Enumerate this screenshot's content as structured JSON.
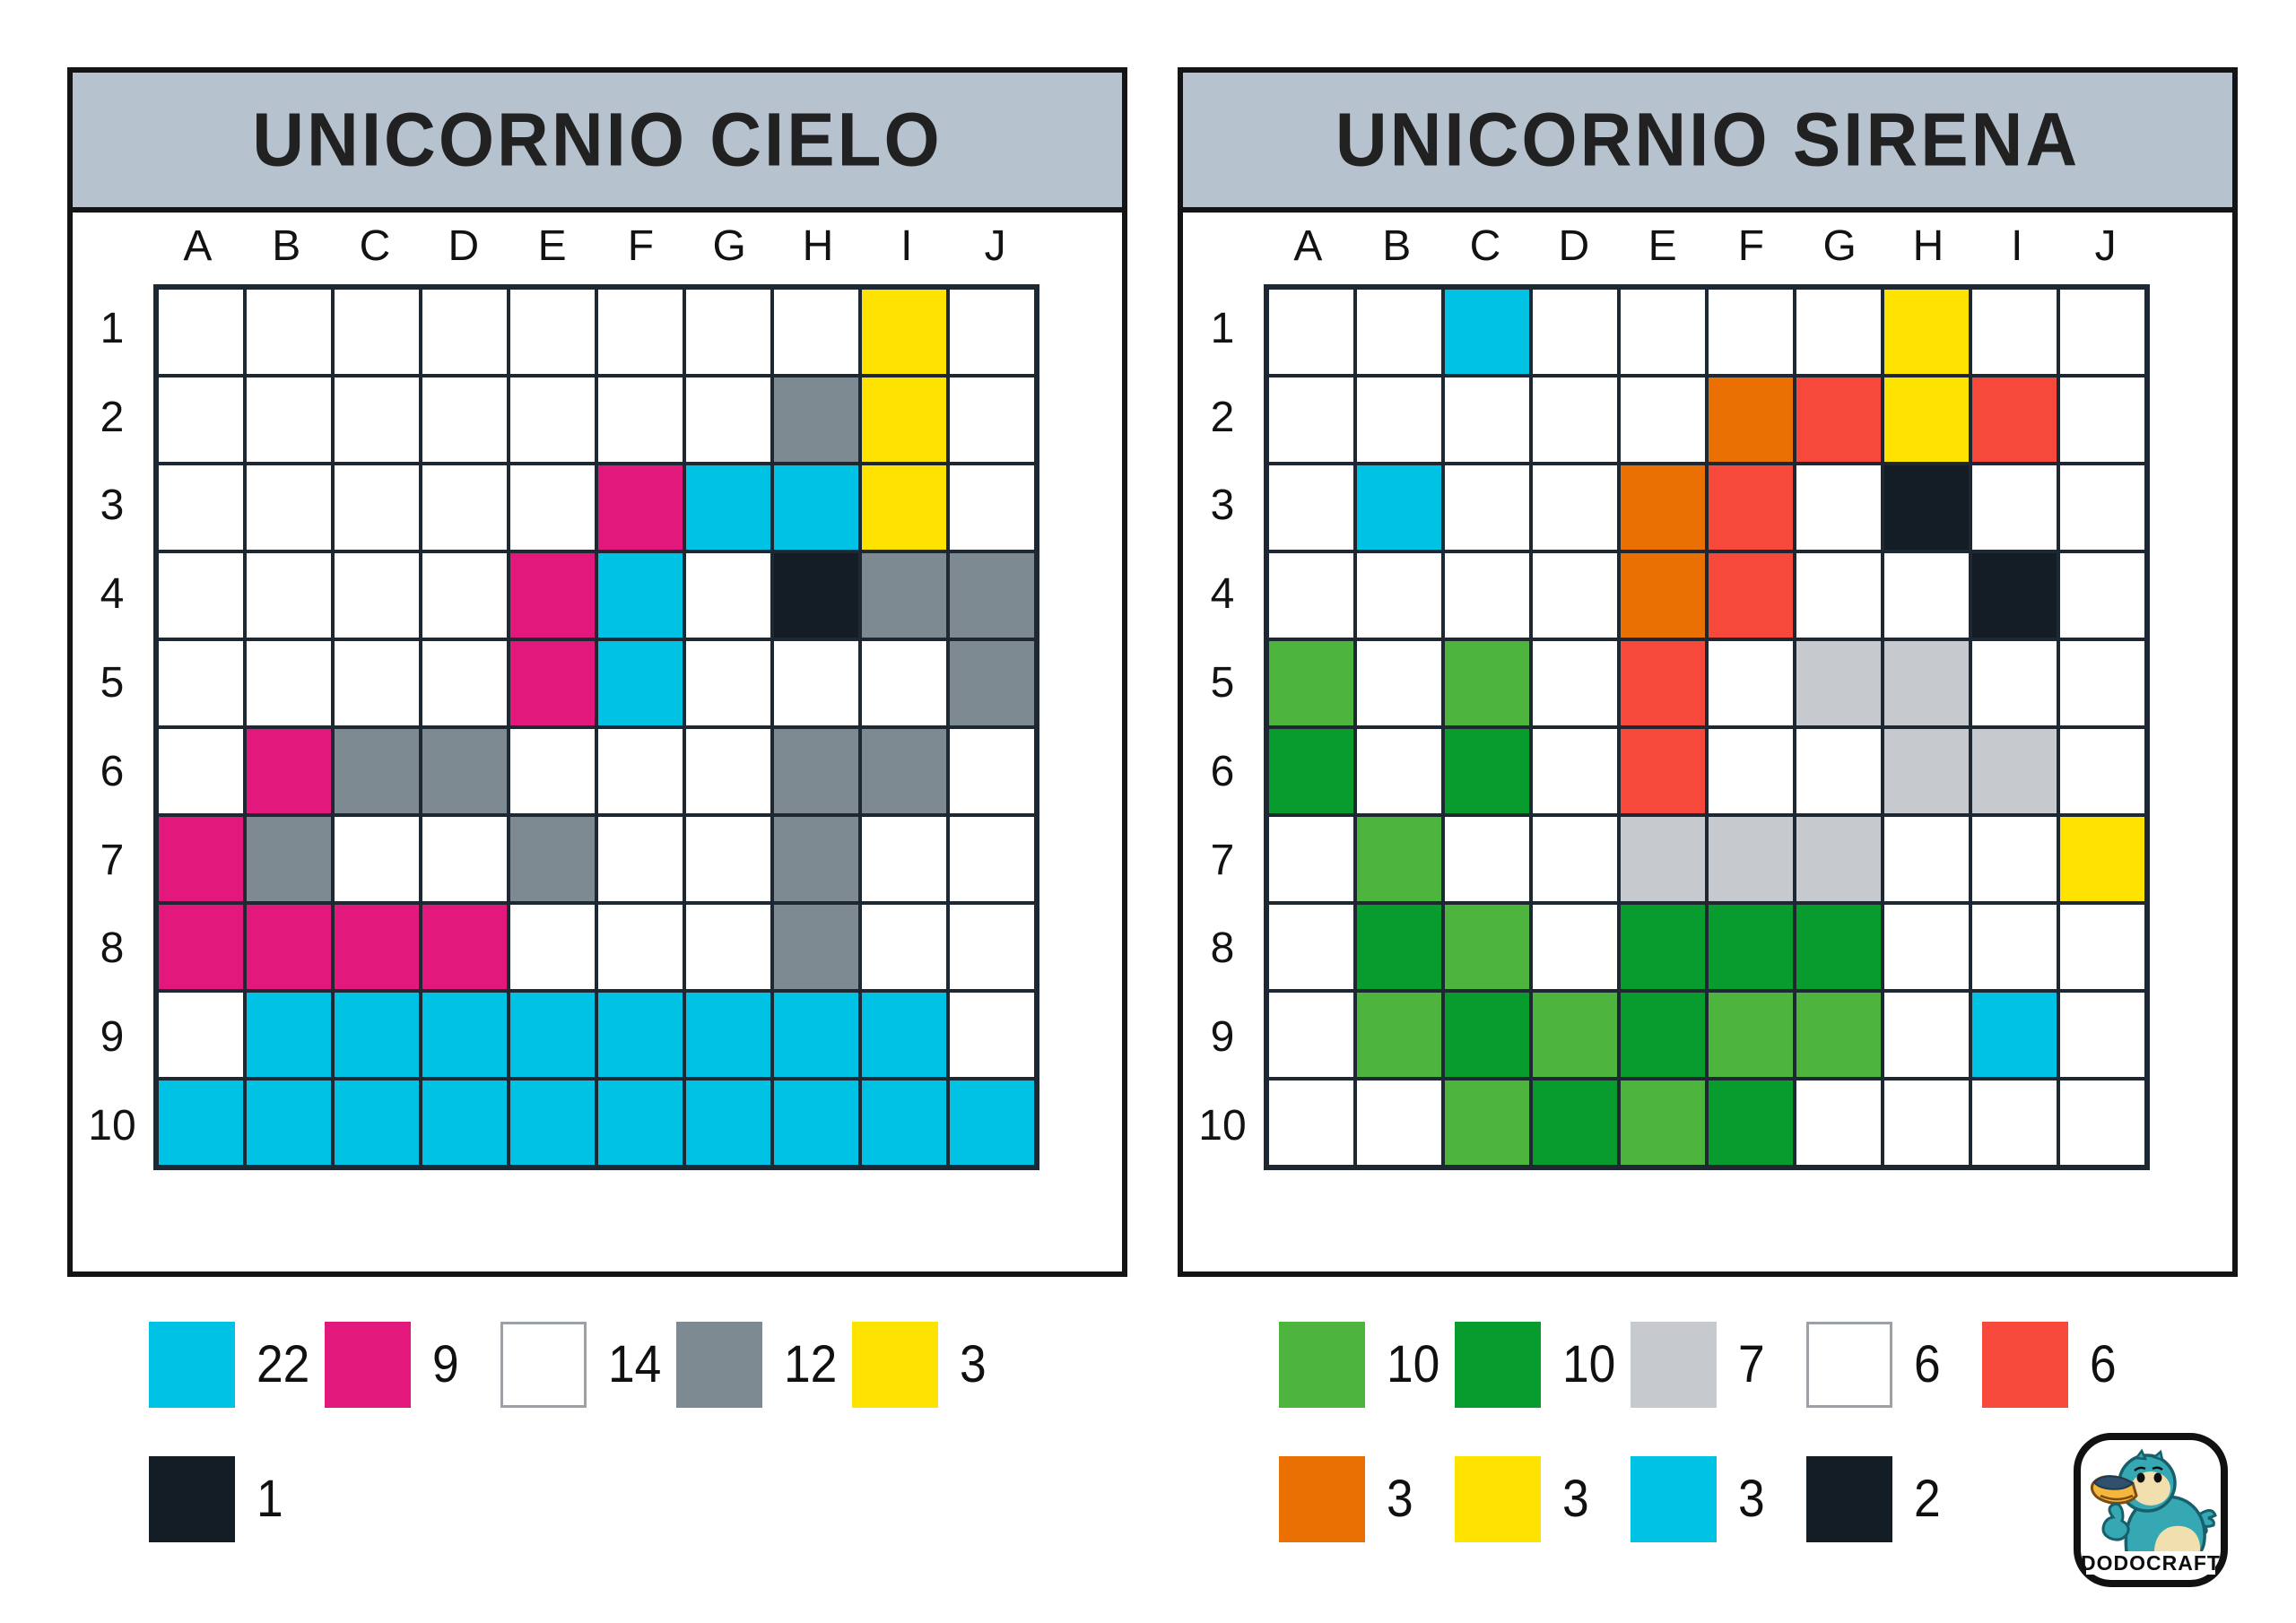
{
  "palette": {
    "white": "#ffffff",
    "cyan": "#00c2e4",
    "pink": "#e2187d",
    "gray": "#7e8a92",
    "yellow": "#fee301",
    "black": "#141c26",
    "lightgreen": "#4db43d",
    "darkgreen": "#089b2e",
    "lightgray": "#c6cacf",
    "red": "#f6493c",
    "orange": "#ea7004",
    "titlebar": "#b6c3ce",
    "gridline": "#1e2833",
    "frame": "#141414"
  },
  "codes": {
    ".": "white",
    "c": "cyan",
    "p": "pink",
    "g": "gray",
    "y": "yellow",
    "k": "black",
    "l": "lightgreen",
    "d": "darkgreen",
    "s": "lightgray",
    "r": "red",
    "o": "orange"
  },
  "column_labels": [
    "A",
    "B",
    "C",
    "D",
    "E",
    "F",
    "G",
    "H",
    "I",
    "J"
  ],
  "row_labels": [
    "1",
    "2",
    "3",
    "4",
    "5",
    "6",
    "7",
    "8",
    "9",
    "10"
  ],
  "panels": [
    {
      "title": "UNICORNIO CIELO",
      "grid": [
        "........y.",
        ".......gy.",
        ".....pccy.",
        "....pc.kgg",
        "....pc...g",
        ".pgg...gg.",
        "pg..g..g..",
        "pppp...g..",
        ".cccccccc.",
        "cccccccccc"
      ],
      "legend": [
        {
          "color": "cyan",
          "count": "22"
        },
        {
          "color": "pink",
          "count": "9"
        },
        {
          "color": "white",
          "count": "14"
        },
        {
          "color": "gray",
          "count": "12"
        },
        {
          "color": "yellow",
          "count": "3"
        },
        {
          "color": "black",
          "count": "1"
        }
      ]
    },
    {
      "title": "UNICORNIO SIRENA",
      "grid": [
        "..c....y..",
        ".....oryr.",
        ".c..or.k..",
        "....or..k.",
        "l.l.r.ss..",
        "d.d.r..ss.",
        ".l..sss..y",
        ".dl.ddd...",
        ".ldldll.c.",
        "..ldld...."
      ],
      "legend": [
        {
          "color": "lightgreen",
          "count": "10"
        },
        {
          "color": "darkgreen",
          "count": "10"
        },
        {
          "color": "lightgray",
          "count": "7"
        },
        {
          "color": "white",
          "count": "6"
        },
        {
          "color": "red",
          "count": "6"
        },
        {
          "color": "orange",
          "count": "3"
        },
        {
          "color": "yellow",
          "count": "3"
        },
        {
          "color": "cyan",
          "count": "3"
        },
        {
          "color": "black",
          "count": "2"
        }
      ]
    }
  ],
  "branding": {
    "logo_text": "DODOCRAFT"
  }
}
